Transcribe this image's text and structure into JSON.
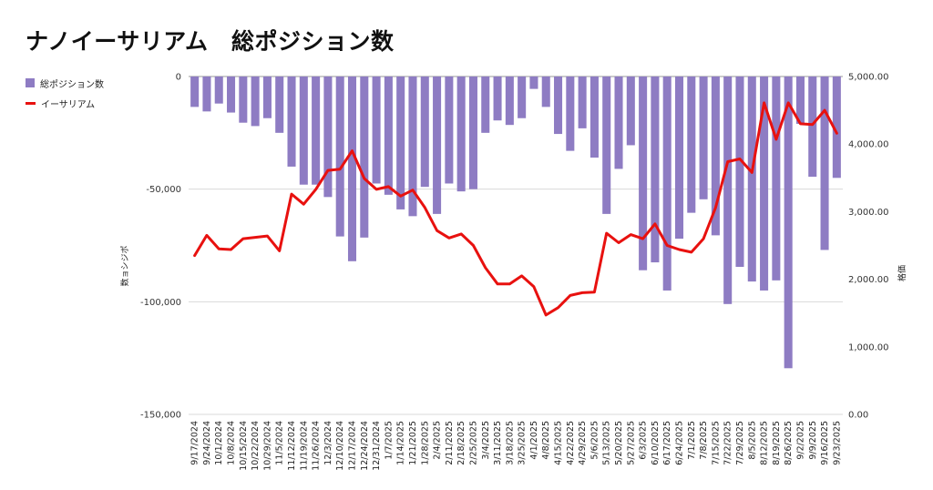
{
  "chart_data": {
    "type": "bar+line",
    "title": "ナノイーサリアム　総ポジション数",
    "y_left_label": "数ョシジポ",
    "y_right_label": "格価",
    "y_left": {
      "min": -150000,
      "max": 0,
      "ticks": [
        0,
        -50000,
        -100000,
        -150000
      ],
      "tick_labels": [
        "0",
        "-50,000",
        "-100,000",
        "-150,000"
      ]
    },
    "y_right": {
      "min": 0,
      "max": 5000,
      "ticks": [
        5000,
        4000,
        3000,
        2000,
        1000,
        0
      ],
      "tick_labels": [
        "5,000.00",
        "4,000.00",
        "3,000.00",
        "2,000.00",
        "1,000.00",
        "0.00"
      ]
    },
    "gridlines": true,
    "legend_position": "top-left",
    "categories": [
      "9/17/2024",
      "9/24/2024",
      "10/1/2024",
      "10/8/2024",
      "10/15/2024",
      "10/22/2024",
      "10/29/2024",
      "11/5/2024",
      "11/12/2024",
      "11/19/2024",
      "11/26/2024",
      "12/3/2024",
      "12/10/2024",
      "12/17/2024",
      "12/24/2024",
      "12/31/2024",
      "1/7/2025",
      "1/14/2025",
      "1/21/2025",
      "1/28/2025",
      "2/4/2025",
      "2/11/2025",
      "2/18/2025",
      "2/25/2025",
      "3/4/2025",
      "3/11/2025",
      "3/18/2025",
      "3/25/2025",
      "4/1/2025",
      "4/8/2025",
      "4/15/2025",
      "4/22/2025",
      "4/29/2025",
      "5/6/2025",
      "5/13/2025",
      "5/20/2025",
      "5/27/2025",
      "6/3/2025",
      "6/10/2025",
      "6/17/2025",
      "6/24/2025",
      "7/1/2025",
      "7/8/2025",
      "7/15/2025",
      "7/22/2025",
      "7/29/2025",
      "8/5/2025",
      "8/12/2025",
      "8/19/2025",
      "8/26/2025",
      "9/2/2025",
      "9/9/2025",
      "9/16/2025",
      "9/23/2025"
    ],
    "series": [
      {
        "name": "総ポジション数",
        "type": "bar",
        "axis": "left",
        "color": "#8e7cc3",
        "values": [
          -13500,
          -15500,
          -12000,
          -16000,
          -20500,
          -22000,
          -18500,
          -25000,
          -40000,
          -48000,
          -48000,
          -53500,
          -71000,
          -82000,
          -71500,
          -47500,
          -52500,
          -59000,
          -62000,
          -49000,
          -61000,
          -47500,
          -51000,
          -50000,
          -25000,
          -19500,
          -21500,
          -18500,
          -5500,
          -13500,
          -25500,
          -33000,
          -23000,
          -36000,
          -61000,
          -41000,
          -30500,
          -86000,
          -82500,
          -95000,
          -72000,
          -60500,
          -54500,
          -70500,
          -101000,
          -84500,
          -91000,
          -95000,
          -90500,
          -129500,
          -21000,
          -44500,
          -77000,
          -45000
        ]
      },
      {
        "name": "イーサリアム",
        "type": "line",
        "axis": "right",
        "color": "#e8110f",
        "values": [
          2350,
          2650,
          2450,
          2440,
          2600,
          2620,
          2640,
          2420,
          3260,
          3110,
          3330,
          3610,
          3630,
          3900,
          3490,
          3330,
          3370,
          3230,
          3320,
          3060,
          2720,
          2610,
          2670,
          2500,
          2170,
          1930,
          1930,
          2050,
          1890,
          1470,
          1580,
          1760,
          1800,
          1810,
          2680,
          2540,
          2660,
          2600,
          2820,
          2500,
          2440,
          2400,
          2600,
          3060,
          3740,
          3780,
          3580,
          4610,
          4070,
          4610,
          4300,
          4290,
          4500,
          4160
        ]
      }
    ]
  }
}
